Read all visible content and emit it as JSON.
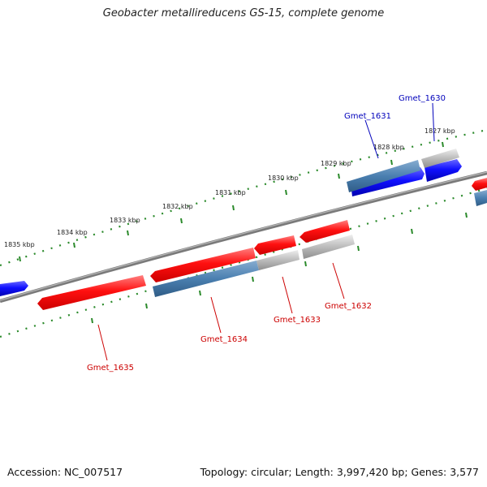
{
  "title": "Geobacter metallireducens GS-15, complete genome",
  "footer": {
    "accession": "Accession: NC_007517",
    "summary": "Topology: circular; Length: 3,997,420 bp; Genes: 3,577"
  },
  "kbp_labels": [
    "1827 kbp",
    "1828 kbp",
    "1829 kbp",
    "1830 kbp",
    "1831 kbp",
    "1832 kbp",
    "1833 kbp",
    "1834 kbp",
    "1835 kbp"
  ],
  "gene_labels": [
    "Gmet_1630",
    "Gmet_1631",
    "Gmet_1632",
    "Gmet_1633",
    "Gmet_1634",
    "Gmet_1635"
  ],
  "colors": {
    "reverse_gene": "#ee0000",
    "forward_gene": "#0000ee",
    "forward_feature": "#4a7fb0",
    "reverse_feature": "#b4b4b4",
    "backbone": "#808080",
    "ticks": "#2b8a2b"
  }
}
